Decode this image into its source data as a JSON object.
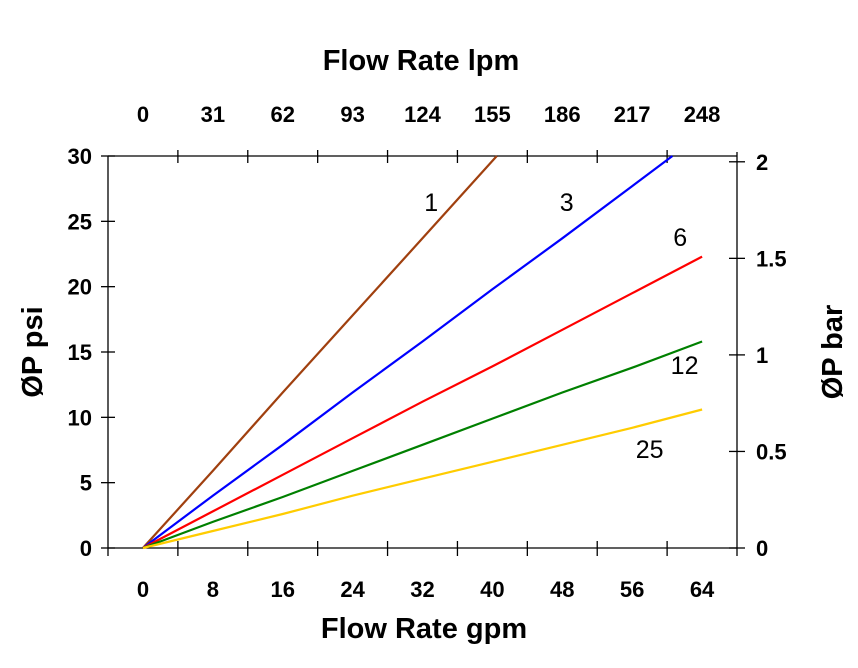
{
  "chart_data": {
    "type": "line",
    "xlabel": "Flow Rate gpm",
    "x2label": "Flow Rate lpm",
    "ylabel": "ØP psi",
    "y2label": "ØP bar",
    "xlim": [
      -4,
      68
    ],
    "ylim": [
      0,
      30
    ],
    "y2lim": [
      0,
      2.03
    ],
    "grid": false,
    "x_ticks": [
      "0",
      "8",
      "16",
      "24",
      "32",
      "40",
      "48",
      "56",
      "64"
    ],
    "x2_ticks": [
      "0",
      "31",
      "62",
      "93",
      "124",
      "155",
      "186",
      "217",
      "248"
    ],
    "y_ticks": [
      "0",
      "5",
      "10",
      "15",
      "20",
      "25",
      "30"
    ],
    "y2_ticks": [
      "0",
      "0.5",
      "1",
      "1.5",
      "2"
    ],
    "series": [
      {
        "name": "1",
        "color": "#a0400f",
        "x": [
          0,
          8,
          16,
          24,
          32,
          40.5
        ],
        "y": [
          0,
          5.9,
          11.9,
          17.8,
          23.7,
          30
        ],
        "label_at": [
          33,
          25.8
        ]
      },
      {
        "name": "3",
        "color": "#0000ff",
        "x": [
          0,
          8,
          16,
          24,
          32,
          40,
          48,
          56,
          60.6
        ],
        "y": [
          0,
          4,
          7.9,
          11.9,
          15.8,
          19.8,
          23.7,
          27.7,
          30
        ],
        "label_at": [
          48.5,
          25.8
        ]
      },
      {
        "name": "6",
        "color": "#ff0000",
        "x": [
          0,
          8,
          16,
          24,
          32,
          40,
          48,
          56,
          64
        ],
        "y": [
          0,
          2.8,
          5.6,
          8.4,
          11.2,
          13.9,
          16.7,
          19.5,
          22.3
        ],
        "label_at": [
          61.5,
          23.1
        ]
      },
      {
        "name": "12",
        "color": "#008000",
        "x": [
          0,
          8,
          16,
          24,
          32,
          40,
          48,
          56,
          64
        ],
        "y": [
          0,
          2,
          3.9,
          5.9,
          7.9,
          9.9,
          11.9,
          13.8,
          15.8
        ],
        "label_at": [
          62,
          13.3
        ]
      },
      {
        "name": "25",
        "color": "#ffcc00",
        "x": [
          0,
          8,
          16,
          24,
          32,
          40,
          48,
          56,
          64
        ],
        "y": [
          0,
          1.3,
          2.6,
          4,
          5.3,
          6.6,
          7.9,
          9.2,
          10.6
        ],
        "label_at": [
          58,
          6.9
        ]
      }
    ]
  }
}
